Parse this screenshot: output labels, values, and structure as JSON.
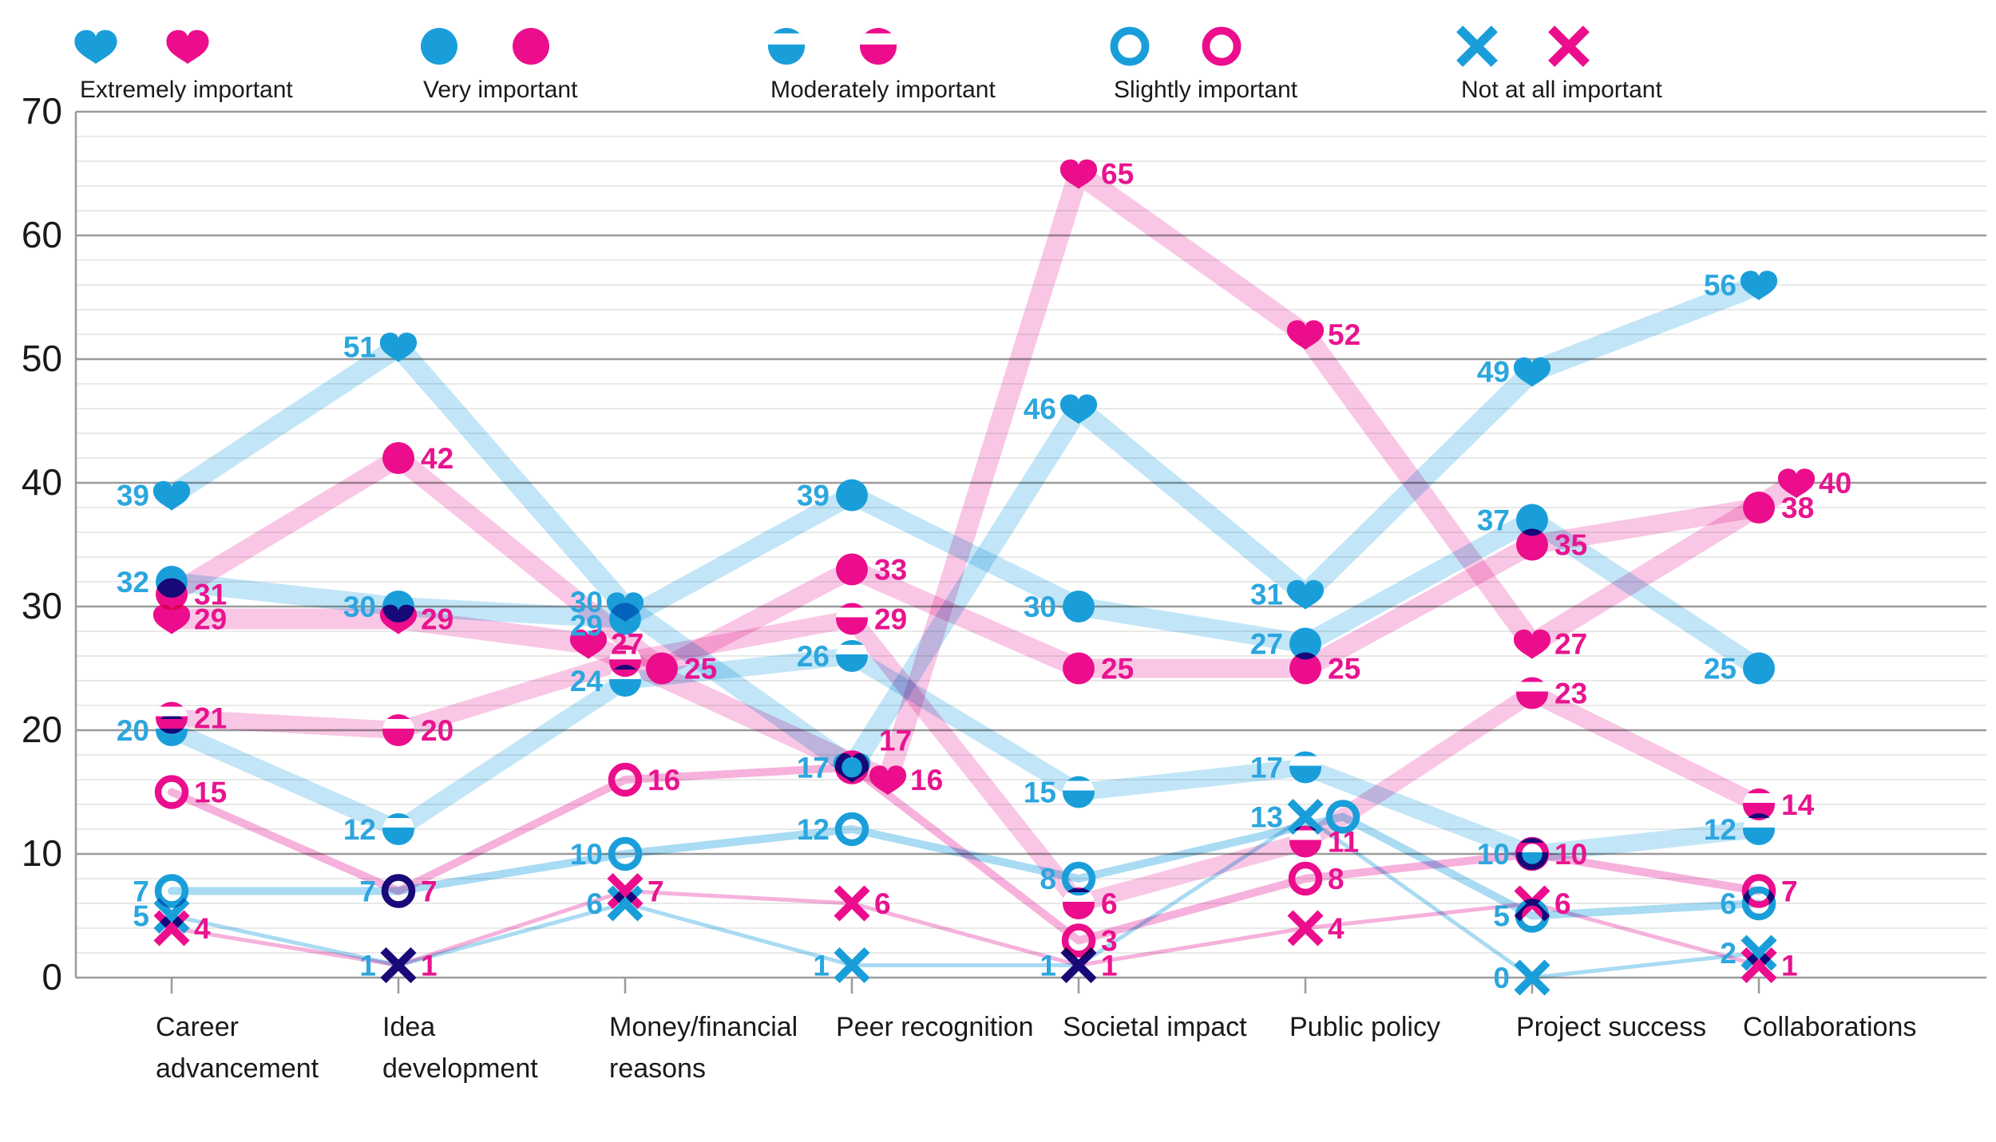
{
  "page": {
    "background": "#ffffff"
  },
  "legend": {
    "items": [
      {
        "label": "Extremely important",
        "marker": "heart"
      },
      {
        "label": "Very important",
        "marker": "circle"
      },
      {
        "label": "Moderately important",
        "marker": "half-circle"
      },
      {
        "label": "Slightly important",
        "marker": "open-circle"
      },
      {
        "label": "Not at all important",
        "marker": "x"
      }
    ]
  },
  "chart_data": {
    "type": "line",
    "title": "",
    "categories": [
      "Career\nadvancement",
      "Idea\ndevelopment",
      "Money/financial\nreasons",
      "Peer recognition",
      "Societal impact",
      "Public policy",
      "Project success",
      "Collaborations"
    ],
    "y_axis": {
      "min": 0,
      "max": 70,
      "major_step": 10,
      "minor_step": 2,
      "tick_labels": [
        "0",
        "10",
        "20",
        "30",
        "40",
        "50",
        "60",
        "70"
      ]
    },
    "grid": true,
    "legend_position": "top",
    "series": [
      {
        "name": "Extremely important",
        "group": "blue",
        "marker": "heart",
        "values": [
          39,
          51,
          30,
          17,
          46,
          31,
          49,
          56
        ]
      },
      {
        "name": "Extremely important",
        "group": "pink",
        "marker": "heart",
        "values": [
          29,
          29,
          27,
          16,
          65,
          52,
          27,
          40
        ]
      },
      {
        "name": "Very important",
        "group": "blue",
        "marker": "circle",
        "values": [
          32,
          30,
          29,
          39,
          30,
          27,
          37,
          25
        ]
      },
      {
        "name": "Very important",
        "group": "pink",
        "marker": "circle",
        "values": [
          31,
          42,
          25,
          33,
          25,
          25,
          35,
          38
        ]
      },
      {
        "name": "Moderately important",
        "group": "blue",
        "marker": "half-circle",
        "values": [
          20,
          12,
          24,
          26,
          15,
          17,
          10,
          12
        ]
      },
      {
        "name": "Moderately important",
        "group": "pink",
        "marker": "half-circle",
        "values": [
          21,
          20,
          25,
          29,
          6,
          11,
          23,
          14
        ]
      },
      {
        "name": "Slightly important",
        "group": "blue",
        "marker": "open-circle",
        "values": [
          7,
          7,
          10,
          12,
          8,
          13,
          5,
          6
        ]
      },
      {
        "name": "Slightly important",
        "group": "pink",
        "marker": "open-circle",
        "values": [
          15,
          7,
          16,
          17,
          3,
          8,
          10,
          7
        ]
      },
      {
        "name": "Not at all important",
        "group": "blue",
        "marker": "x",
        "values": [
          5,
          1,
          6,
          1,
          1,
          13,
          0,
          2
        ]
      },
      {
        "name": "Not at all important",
        "group": "pink",
        "marker": "x",
        "values": [
          4,
          1,
          7,
          6,
          1,
          4,
          6,
          1
        ]
      }
    ],
    "colors": {
      "blue": "#1A9EDA",
      "pink": "#EB0D8C",
      "blue_band": "#C2E6F7",
      "pink_band": "#F9C7E5",
      "blue_thin": "#A9DBF3",
      "pink_thin": "#F6B1DC",
      "blue_label": "#2CA6DE",
      "pink_label": "#E8148F",
      "grid_minor": "#E2E2E2",
      "grid_major": "#9B9B9B",
      "axis_text": "#1A1A1A"
    },
    "label_adjustments": {
      "0-2": {
        "ldy": -6
      },
      "2-2": {
        "ldy": 8
      },
      "1-2": {
        "dx": -46
      },
      "3-2": {
        "dx": 46
      },
      "5-2": {
        "dv": 0.6,
        "hideLabel": true
      },
      "1-3": {
        "dx": 45
      },
      "7-3": {
        "ldx": 6,
        "ldy": -34
      },
      "6-5": {
        "dx": 47,
        "hideLabel": true
      },
      "1-7": {
        "dx": 47
      }
    }
  }
}
